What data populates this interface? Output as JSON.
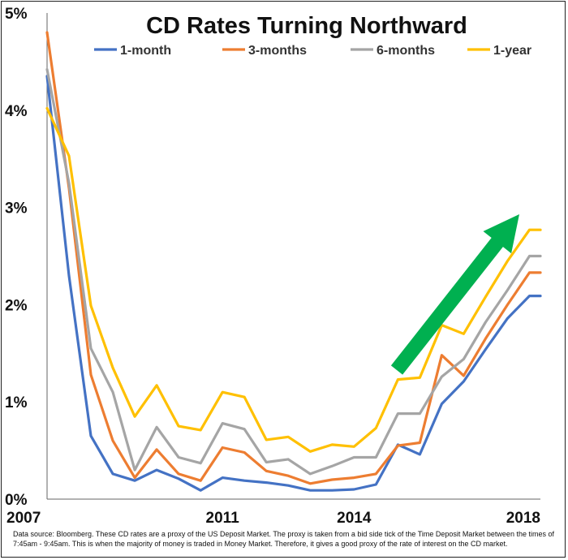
{
  "chart_data": {
    "type": "line",
    "title": "CD Rates Turning Northward",
    "xlabel": "",
    "ylabel": "",
    "x_ticks": [
      "2007",
      "2011",
      "2014",
      "2018"
    ],
    "y_ticks": [
      "0%",
      "1%",
      "2%",
      "3%",
      "4%",
      "5%"
    ],
    "ylim": [
      0,
      5
    ],
    "grid": false,
    "legend_position": "top",
    "x": [
      2007.0,
      2007.5,
      2008.0,
      2008.5,
      2009.0,
      2009.5,
      2010.0,
      2010.5,
      2011.0,
      2011.5,
      2012.0,
      2012.5,
      2013.0,
      2013.5,
      2014.0,
      2014.5,
      2015.0,
      2015.5,
      2016.0,
      2016.5,
      2017.0,
      2017.5,
      2018.0,
      2018.25
    ],
    "series": [
      {
        "name": "1-month",
        "color": "#4472C4",
        "values": [
          4.35,
          2.3,
          0.65,
          0.26,
          0.19,
          0.3,
          0.21,
          0.09,
          0.22,
          0.19,
          0.17,
          0.14,
          0.09,
          0.09,
          0.1,
          0.15,
          0.56,
          0.46,
          0.98,
          1.21,
          1.54,
          1.86,
          2.09,
          2.09
        ]
      },
      {
        "name": "3-months",
        "color": "#ED7D31",
        "values": [
          4.8,
          3.2,
          1.28,
          0.6,
          0.22,
          0.51,
          0.26,
          0.19,
          0.53,
          0.48,
          0.29,
          0.24,
          0.16,
          0.2,
          0.22,
          0.26,
          0.55,
          0.58,
          1.48,
          1.27,
          1.65,
          2.0,
          2.33,
          2.33
        ]
      },
      {
        "name": "6-months",
        "color": "#A5A5A5",
        "values": [
          4.42,
          3.25,
          1.55,
          1.1,
          0.3,
          0.74,
          0.43,
          0.37,
          0.78,
          0.72,
          0.38,
          0.41,
          0.26,
          0.34,
          0.43,
          0.43,
          0.88,
          0.88,
          1.26,
          1.44,
          1.82,
          2.15,
          2.5,
          2.5
        ]
      },
      {
        "name": "1-year",
        "color": "#FFC000",
        "values": [
          4.02,
          3.53,
          1.99,
          1.35,
          0.85,
          1.17,
          0.75,
          0.71,
          1.1,
          1.05,
          0.61,
          0.64,
          0.49,
          0.56,
          0.54,
          0.73,
          1.23,
          1.25,
          1.79,
          1.7,
          2.08,
          2.45,
          2.77,
          2.77
        ]
      }
    ],
    "annotation": {
      "shape": "arrow",
      "color": "#00B050",
      "direction": "up-right"
    }
  },
  "footer": {
    "source_text": "Data source:  Bloomberg.  These CD rates are a proxy of the US Deposit  Market.  The proxy is taken from a bid side tick of the Time Deposit Market between the times of 7:45am - 9:45am. This is when the majority of money is traded in Money Market. Therefore, it gives a good proxy of the rate of interest on the CD market."
  }
}
